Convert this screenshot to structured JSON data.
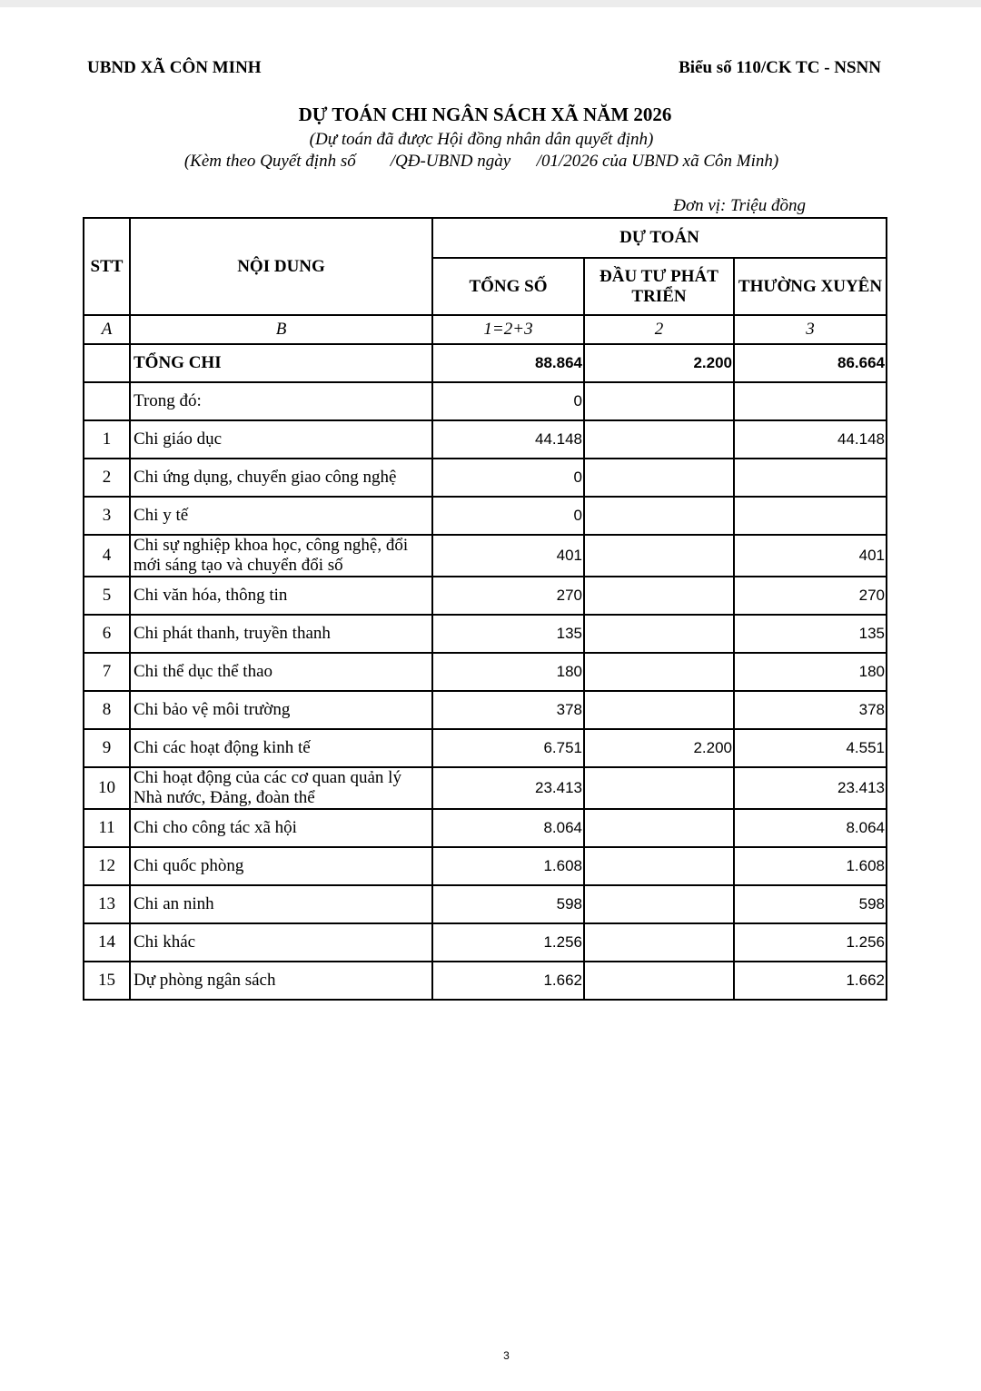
{
  "header": {
    "left": "UBND XÃ CÔN MINH",
    "right": "Biểu số 110/CK TC - NSNN"
  },
  "title": "DỰ TOÁN CHI NGÂN SÁCH XÃ NĂM 2026",
  "subtitle": "(Dự toán đã được Hội đồng nhân dân quyết định)",
  "decision": "(Kèm theo Quyết định số        /QĐ-UBND ngày      /01/2026 của UBND xã Côn Minh)",
  "unit": "Đơn vị: Triệu đồng",
  "table": {
    "headers": {
      "stt": "STT",
      "content": "NỘI DUNG",
      "group": "DỰ TOÁN",
      "cols": [
        "TỔNG SỐ",
        "ĐẦU TƯ PHÁT TRIỂN",
        "THƯỜNG XUYÊN"
      ]
    },
    "index_row": [
      "A",
      "B",
      "1=2+3",
      "2",
      "3"
    ],
    "rows": [
      [
        null,
        "TỔNG CHI",
        "88.864",
        "2.200",
        "86.664"
      ],
      [
        null,
        "Trong đó:",
        "0",
        null,
        null
      ],
      [
        "1",
        "Chi giáo dục",
        "44.148",
        null,
        "44.148"
      ],
      [
        "2",
        "Chi ứng dụng, chuyển giao công nghệ",
        "0",
        null,
        null
      ],
      [
        "3",
        "Chi y tế",
        "0",
        null,
        null
      ],
      [
        "4",
        "Chi sự nghiệp khoa học, công nghệ, đổi mới sáng tạo và chuyển đổi số",
        "401",
        null,
        "401"
      ],
      [
        "5",
        "Chi văn hóa, thông tin",
        "270",
        null,
        "270"
      ],
      [
        "6",
        "Chi phát thanh, truyền thanh",
        "135",
        null,
        "135"
      ],
      [
        "7",
        "Chi thể dục thể thao",
        "180",
        null,
        "180"
      ],
      [
        "8",
        "Chi bảo vệ môi trường",
        "378",
        null,
        "378"
      ],
      [
        "9",
        "Chi các hoạt động kinh tế",
        "6.751",
        "2.200",
        "4.551"
      ],
      [
        "10",
        "Chi hoạt động của các cơ quan quản lý Nhà nước, Đảng, đoàn thể",
        "23.413",
        null,
        "23.413"
      ],
      [
        "11",
        "Chi cho công tác xã hội",
        "8.064",
        null,
        "8.064"
      ],
      [
        "12",
        "Chi quốc phòng",
        "1.608",
        null,
        "1.608"
      ],
      [
        "13",
        "Chi an ninh",
        "598",
        null,
        "598"
      ],
      [
        "14",
        "Chi khác",
        "1.256",
        null,
        "1.256"
      ],
      [
        "15",
        "Dự phòng ngân sách",
        "1.662",
        null,
        "1.662"
      ]
    ]
  },
  "page_number": "3"
}
